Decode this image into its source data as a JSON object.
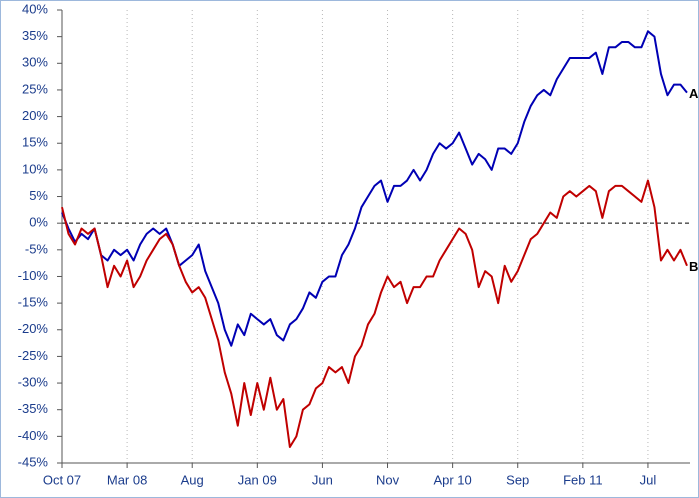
{
  "chart_data": {
    "type": "line",
    "categories": [
      "Oct 07",
      null,
      null,
      null,
      null,
      null,
      null,
      null,
      null,
      null,
      "Mar 08",
      null,
      null,
      null,
      null,
      null,
      null,
      null,
      null,
      null,
      "Aug",
      null,
      null,
      null,
      null,
      null,
      null,
      null,
      null,
      null,
      "Jan 09",
      null,
      null,
      null,
      null,
      null,
      null,
      null,
      null,
      null,
      "Jun",
      null,
      null,
      null,
      null,
      null,
      null,
      null,
      null,
      null,
      "Nov",
      null,
      null,
      null,
      null,
      null,
      null,
      null,
      null,
      null,
      "Apr 10",
      null,
      null,
      null,
      null,
      null,
      null,
      null,
      null,
      null,
      "Sep",
      null,
      null,
      null,
      null,
      null,
      null,
      null,
      null,
      null,
      "Feb 11",
      null,
      null,
      null,
      null,
      null,
      null,
      null,
      null,
      null,
      "Jul",
      null,
      null,
      null,
      null,
      null,
      null
    ],
    "series": [
      {
        "name": "A",
        "color": "#0000b4",
        "values": [
          2,
          -1,
          -3.5,
          -2,
          -3,
          -1,
          -6,
          -7,
          -5,
          -6,
          -5,
          -7,
          -4,
          -2,
          -1,
          -2,
          -1,
          -4,
          -8,
          -7,
          -6,
          -4,
          -9,
          -12,
          -15,
          -20,
          -23,
          -19,
          -21,
          -17,
          -18,
          -19,
          -18,
          -21,
          -22,
          -19,
          -18,
          -16,
          -13,
          -14,
          -11,
          -10,
          -10,
          -6,
          -4,
          -1,
          3,
          5,
          7,
          8,
          4,
          7,
          7,
          8,
          10,
          8,
          10,
          13,
          15,
          14,
          15,
          17,
          14,
          11,
          13,
          12,
          10,
          14,
          14,
          13,
          15,
          19,
          22,
          24,
          25,
          24,
          27,
          29,
          31,
          31,
          31,
          31,
          32,
          28,
          33,
          33,
          34,
          34,
          33,
          33,
          36,
          35,
          28,
          24,
          26,
          26,
          24.5
        ]
      },
      {
        "name": "B",
        "color": "#c00000",
        "values": [
          3,
          -2,
          -4,
          -1,
          -2,
          -1,
          -6,
          -12,
          -8,
          -10,
          -7,
          -12,
          -10,
          -7,
          -5,
          -3,
          -2,
          -4,
          -8,
          -11,
          -13,
          -12,
          -14,
          -18,
          -22,
          -28,
          -32,
          -38,
          -30,
          -36,
          -30,
          -35,
          -29,
          -35,
          -33,
          -42,
          -40,
          -35,
          -34,
          -31,
          -30,
          -27,
          -28,
          -27,
          -30,
          -25,
          -23,
          -19,
          -17,
          -13,
          -10,
          -12,
          -11,
          -15,
          -12,
          -12,
          -10,
          -10,
          -7,
          -5,
          -3,
          -1,
          -2,
          -5,
          -12,
          -9,
          -10,
          -15,
          -8,
          -11,
          -9,
          -6,
          -3,
          -2,
          0,
          2,
          1,
          5,
          6,
          5,
          6,
          7,
          6,
          1,
          6,
          7,
          7,
          6,
          5,
          4,
          8,
          3,
          -7,
          -5,
          -7,
          -5,
          -8
        ]
      }
    ],
    "ylim": [
      -45,
      40
    ],
    "yticks": [
      {
        "value": -45,
        "label": "-45%"
      },
      {
        "value": -40,
        "label": "-40%"
      },
      {
        "value": -35,
        "label": "-35%"
      },
      {
        "value": -30,
        "label": "-30%"
      },
      {
        "value": -25,
        "label": "-25%"
      },
      {
        "value": -20,
        "label": "-20%"
      },
      {
        "value": -15,
        "label": "-15%"
      },
      {
        "value": -10,
        "label": "-10%"
      },
      {
        "value": -5,
        "label": "-5%"
      },
      {
        "value": 0,
        "label": "0%"
      },
      {
        "value": 5,
        "label": "5%"
      },
      {
        "value": 10,
        "label": "10%"
      },
      {
        "value": 15,
        "label": "15%"
      },
      {
        "value": 20,
        "label": "20%"
      },
      {
        "value": 25,
        "label": "25%"
      },
      {
        "value": 30,
        "label": "30%"
      },
      {
        "value": 35,
        "label": "35%"
      },
      {
        "value": 40,
        "label": "40%"
      }
    ],
    "grid": true
  }
}
